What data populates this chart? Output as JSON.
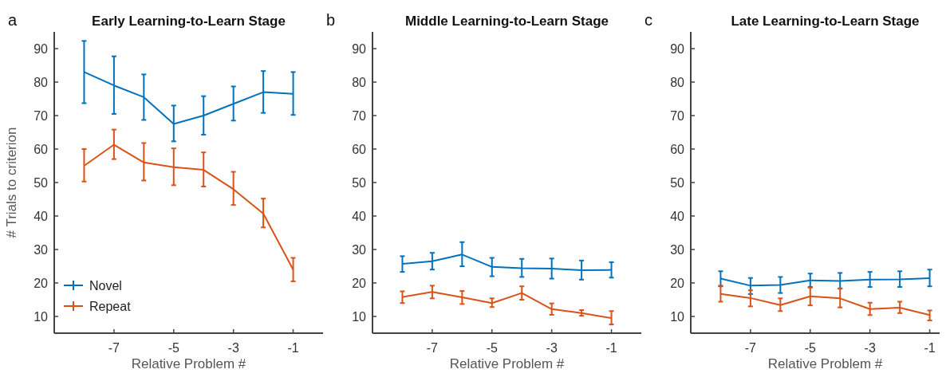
{
  "chart_data": [
    {
      "type": "line",
      "title": "Early Learning-to-Learn Stage",
      "annotations": [
        "a"
      ],
      "xlabel": "Relative Problem #",
      "ylabel": "# Trials to criterion",
      "x": [
        -8,
        -7,
        -6,
        -5,
        -4,
        -3,
        -2,
        -1
      ],
      "xlim": [
        -9,
        0
      ],
      "xticks": [
        -7,
        -5,
        -3,
        -1
      ],
      "ylim": [
        5,
        95
      ],
      "yticks": [
        10,
        20,
        30,
        40,
        50,
        60,
        70,
        80,
        90
      ],
      "legend": "bottom left",
      "grid": false,
      "marker": "none",
      "line_style": "solid",
      "series": [
        {
          "name": "Novel",
          "color": "#0072bd",
          "values": [
            83,
            79,
            75.5,
            67.5,
            70,
            73.5,
            77,
            76.5
          ],
          "errors": [
            [
              73.7,
              92.3
            ],
            [
              70.5,
              87.7
            ],
            [
              68.7,
              82.3
            ],
            [
              62.3,
              73
            ],
            [
              64.3,
              75.8
            ],
            [
              68.5,
              78.7
            ],
            [
              70.8,
              83.3
            ],
            [
              70.2,
              83
            ]
          ]
        },
        {
          "name": "Repeat",
          "color": "#d95319",
          "values": [
            55,
            61.3,
            56,
            54.6,
            53.8,
            48,
            40.7,
            24
          ],
          "errors": [
            [
              50.3,
              60
            ],
            [
              57,
              65.8
            ],
            [
              50.6,
              61.8
            ],
            [
              49.2,
              60.2
            ],
            [
              48.8,
              59
            ],
            [
              43.3,
              53.2
            ],
            [
              36.6,
              45.2
            ],
            [
              20.5,
              27.5
            ]
          ]
        }
      ]
    },
    {
      "type": "line",
      "title": "Middle Learning-to-Learn Stage",
      "annotations": [
        "b"
      ],
      "xlabel": "Relative Problem #",
      "x": [
        -8,
        -7,
        -6,
        -5,
        -4,
        -3,
        -2,
        -1
      ],
      "xlim": [
        -9,
        0
      ],
      "xticks": [
        -7,
        -5,
        -3,
        -1
      ],
      "ylim": [
        5,
        95
      ],
      "yticks": [
        10,
        20,
        30,
        40,
        50,
        60,
        70,
        80,
        90
      ],
      "grid": false,
      "marker": "none",
      "line_style": "solid",
      "series": [
        {
          "color": "#0072bd",
          "values": [
            25.7,
            26.5,
            28.5,
            24.8,
            24.4,
            24.3,
            23.8,
            23.9
          ],
          "errors": [
            [
              23.3,
              28
            ],
            [
              24,
              29
            ],
            [
              25,
              32.2
            ],
            [
              22,
              27.5
            ],
            [
              21.8,
              27.2
            ],
            [
              21.3,
              27.3
            ],
            [
              21,
              26.7
            ],
            [
              21.6,
              26.2
            ]
          ]
        },
        {
          "color": "#d95319",
          "values": [
            15.8,
            17.3,
            15.7,
            14,
            17,
            12.2,
            11,
            9.5
          ],
          "errors": [
            [
              14,
              17.5
            ],
            [
              15.4,
              19.2
            ],
            [
              13.7,
              17.6
            ],
            [
              12.8,
              15.4
            ],
            [
              15,
              19
            ],
            [
              10.5,
              13.9
            ],
            [
              10.2,
              11.9
            ],
            [
              7.6,
              11.6
            ]
          ]
        }
      ]
    },
    {
      "type": "line",
      "title": "Late Learning-to-Learn Stage",
      "annotations": [
        "c"
      ],
      "xlabel": "Relative Problem #",
      "x": [
        -8,
        -7,
        -6,
        -5,
        -4,
        -3,
        -2,
        -1
      ],
      "xlim": [
        -9,
        0
      ],
      "xticks": [
        -7,
        -5,
        -3,
        -1
      ],
      "ylim": [
        5,
        95
      ],
      "yticks": [
        10,
        20,
        30,
        40,
        50,
        60,
        70,
        80,
        90
      ],
      "grid": false,
      "marker": "none",
      "line_style": "solid",
      "series": [
        {
          "color": "#0072bd",
          "values": [
            21.3,
            19.2,
            19.4,
            20.8,
            20.6,
            21,
            21.1,
            21.4
          ],
          "errors": [
            [
              19,
              23.5
            ],
            [
              16.7,
              21.5
            ],
            [
              17,
              21.8
            ],
            [
              18.8,
              22.8
            ],
            [
              18.3,
              23
            ],
            [
              18.8,
              23.3
            ],
            [
              18.8,
              23.5
            ],
            [
              19,
              24
            ]
          ]
        },
        {
          "color": "#d95319",
          "values": [
            16.7,
            15.5,
            13.4,
            16,
            15.4,
            12.2,
            12.6,
            10.4
          ],
          "errors": [
            [
              14.4,
              19.2
            ],
            [
              13,
              17.8
            ],
            [
              11.6,
              15.4
            ],
            [
              13.3,
              18.6
            ],
            [
              12.7,
              18.4
            ],
            [
              10.4,
              14.1
            ],
            [
              11,
              14.4
            ],
            [
              8.8,
              11.8
            ]
          ]
        }
      ]
    }
  ]
}
